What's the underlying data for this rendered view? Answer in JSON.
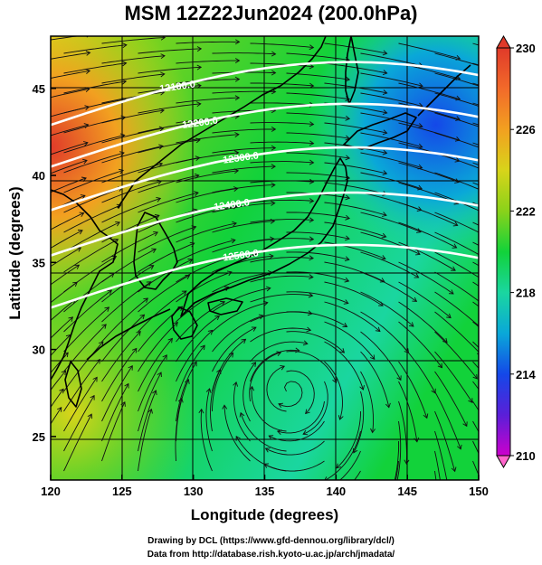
{
  "title": "MSM 12Z22Jun2024 (200.0hPa)",
  "axes": {
    "xlabel": "Longitude (degrees)",
    "ylabel": "Latitude  (degrees)",
    "xticks": [
      "120",
      "125",
      "130",
      "135",
      "140",
      "145",
      "150"
    ],
    "yticks": [
      "25",
      "30",
      "35",
      "40",
      "45"
    ]
  },
  "colorbar": {
    "ticks": [
      "210",
      "214",
      "218",
      "222",
      "226",
      "230"
    ],
    "colors": [
      "#cc00cc",
      "#5a1fd8",
      "#1448e8",
      "#0aa8d8",
      "#1ad6a0",
      "#12d23a",
      "#8ad21a",
      "#d8d41a",
      "#f2a020",
      "#f26a2a",
      "#e03a2a"
    ]
  },
  "contours": [
    {
      "label": "12100.0",
      "lat": 44.7
    },
    {
      "label": "12200.0",
      "lat": 42.3
    },
    {
      "label": "12300.0",
      "lat": 39.8
    },
    {
      "label": "12400.0",
      "lat": 37.2
    },
    {
      "label": "12500.0",
      "lat": 34.2
    }
  ],
  "credits": {
    "line1": "Drawing by DCL (https://www.gfd-dennou.org/library/dcl/)",
    "line2": "Data from http://database.rish.kyoto-u.ac.jp/arch/jmadata/"
  }
}
